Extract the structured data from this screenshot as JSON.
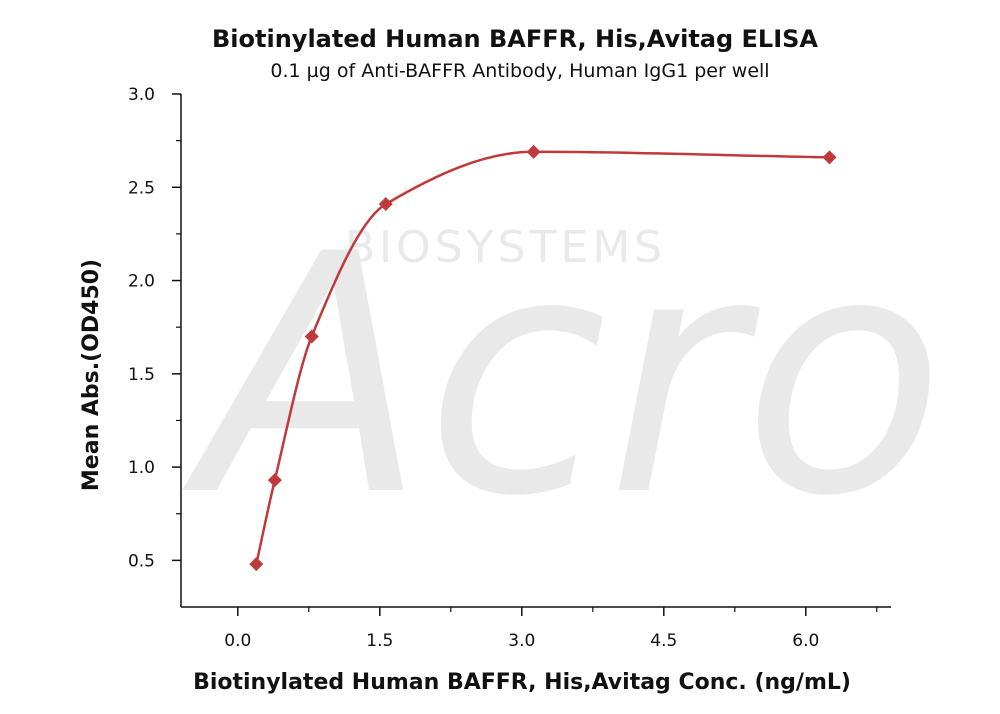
{
  "chart_data": {
    "type": "scatter",
    "title": "Biotinylated Human BAFFR, His,Avitag ELISA",
    "subtitle": "0.1 µg of Anti-BAFFR Antibody, Human IgG1 per well",
    "xlabel": "Biotinylated Human BAFFR, His,Avitag Conc. (ng/mL)",
    "ylabel": "Mean Abs.(OD450)",
    "xlim": [
      -0.6,
      6.9
    ],
    "ylim": [
      0.25,
      3.0
    ],
    "x_ticks": [
      0.0,
      1.5,
      3.0,
      4.5,
      6.0
    ],
    "x_tick_labels": [
      "0.0",
      "1.5",
      "3.0",
      "4.5",
      "6.0"
    ],
    "y_ticks": [
      0.5,
      1.0,
      1.5,
      2.0,
      2.5,
      3.0
    ],
    "y_tick_labels": [
      "0.5",
      "1.0",
      "1.5",
      "2.0",
      "2.5",
      "3.0"
    ],
    "grid": false,
    "series": [
      {
        "marker": "diamond",
        "color": "#c0393b",
        "fit_curve": true,
        "points": [
          {
            "x": 0.195,
            "y": 0.48
          },
          {
            "x": 0.391,
            "y": 0.93
          },
          {
            "x": 0.781,
            "y": 1.7
          },
          {
            "x": 1.563,
            "y": 2.41
          },
          {
            "x": 3.125,
            "y": 2.69
          },
          {
            "x": 6.25,
            "y": 2.66
          }
        ]
      }
    ],
    "watermark": {
      "logo_text": "Acro",
      "sub_text": "BIOSYSTEMS"
    }
  }
}
